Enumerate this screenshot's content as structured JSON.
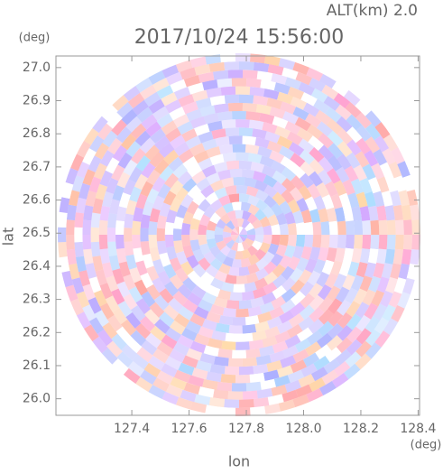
{
  "chart_data": {
    "type": "radar-image",
    "title": "2017/10/24 15:56:00",
    "annotation": "ALT(km) 2.0",
    "xlabel": "lon",
    "ylabel": "lat",
    "xunit": "(deg)",
    "yunit": "(deg)",
    "xlim": [
      127.135,
      128.405
    ],
    "ylim": [
      25.95,
      27.035
    ],
    "xticks": [
      127.4,
      127.6,
      127.8,
      {
        "value": 128.0,
        "label": "128.0"
      },
      128.2,
      128.4
    ],
    "yticks": [
      {
        "value": 26.0,
        "label": "26.0"
      },
      26.1,
      26.2,
      26.3,
      26.4,
      26.5,
      26.6,
      26.7,
      26.8,
      26.9,
      {
        "value": 27.0,
        "label": "27.0"
      }
    ]
  }
}
